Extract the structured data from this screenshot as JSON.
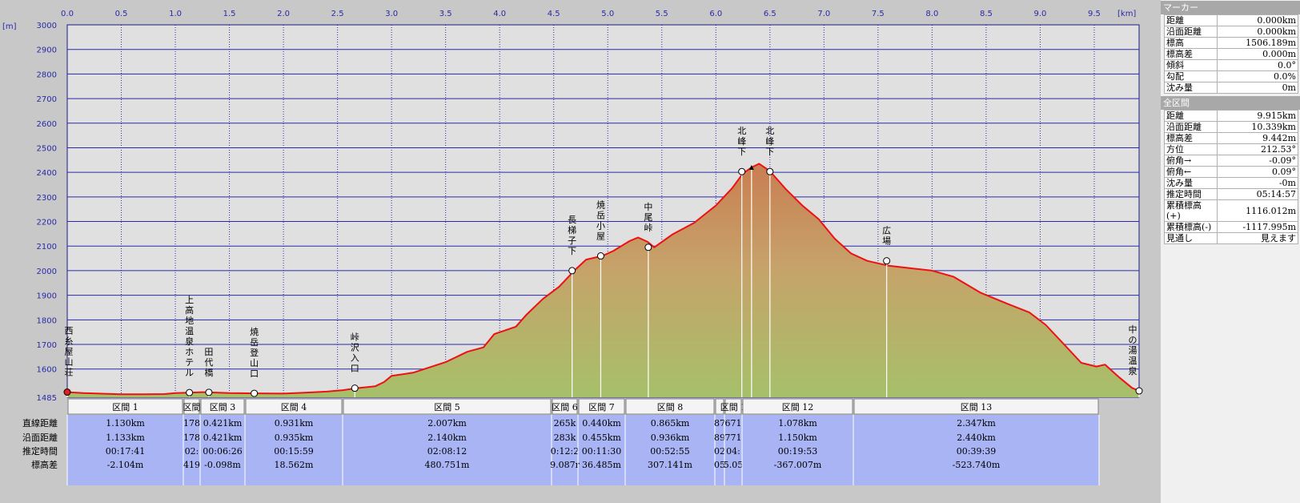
{
  "chart_data": {
    "type": "area",
    "x_unit": "[km]",
    "y_unit": "[m]",
    "xlim": [
      0,
      9.915
    ],
    "ylim": [
      1485,
      3000
    ],
    "x_ticks": [
      "0.0",
      "0.5",
      "1.0",
      "1.5",
      "2.0",
      "2.5",
      "3.0",
      "3.5",
      "4.0",
      "4.5",
      "5.0",
      "5.5",
      "6.0",
      "6.5",
      "7.0",
      "7.5",
      "8.0",
      "8.5",
      "9.0",
      "9.5"
    ],
    "x_tick_values": [
      0,
      0.5,
      1,
      1.5,
      2,
      2.5,
      3,
      3.5,
      4,
      4.5,
      5,
      5.5,
      6,
      6.5,
      7,
      7.5,
      8,
      8.5,
      9,
      9.5
    ],
    "y_ticks": [
      "3000",
      "2900",
      "2800",
      "2700",
      "2600",
      "2500",
      "2400",
      "2300",
      "2200",
      "2100",
      "2000",
      "1900",
      "1800",
      "1700",
      "1600",
      "1485"
    ],
    "y_tick_values": [
      3000,
      2900,
      2800,
      2700,
      2600,
      2500,
      2400,
      2300,
      2200,
      2100,
      2000,
      1900,
      1800,
      1700,
      1600,
      1485
    ],
    "profile": [
      [
        0,
        1506
      ],
      [
        0.15,
        1502
      ],
      [
        0.3,
        1500
      ],
      [
        0.5,
        1497
      ],
      [
        0.7,
        1497
      ],
      [
        0.9,
        1498
      ],
      [
        1.0,
        1502
      ],
      [
        1.13,
        1504
      ],
      [
        1.25,
        1506
      ],
      [
        1.32,
        1505
      ],
      [
        1.5,
        1502
      ],
      [
        1.75,
        1501
      ],
      [
        2.0,
        1500
      ],
      [
        2.2,
        1504
      ],
      [
        2.4,
        1508
      ],
      [
        2.55,
        1514
      ],
      [
        2.68,
        1522
      ],
      [
        2.85,
        1530
      ],
      [
        2.93,
        1547
      ],
      [
        3.0,
        1572
      ],
      [
        3.2,
        1585
      ],
      [
        3.5,
        1628
      ],
      [
        3.7,
        1670
      ],
      [
        3.85,
        1688
      ],
      [
        3.95,
        1742
      ],
      [
        4.15,
        1772
      ],
      [
        4.25,
        1822
      ],
      [
        4.4,
        1885
      ],
      [
        4.55,
        1935
      ],
      [
        4.69,
        2000
      ],
      [
        4.8,
        2045
      ],
      [
        4.95,
        2060
      ],
      [
        5.05,
        2080
      ],
      [
        5.2,
        2120
      ],
      [
        5.28,
        2135
      ],
      [
        5.37,
        2117
      ],
      [
        5.43,
        2095
      ],
      [
        5.6,
        2148
      ],
      [
        5.8,
        2195
      ],
      [
        6.0,
        2265
      ],
      [
        6.15,
        2335
      ],
      [
        6.25,
        2395
      ],
      [
        6.33,
        2420
      ],
      [
        6.4,
        2435
      ],
      [
        6.5,
        2405
      ],
      [
        6.65,
        2330
      ],
      [
        6.8,
        2265
      ],
      [
        6.95,
        2210
      ],
      [
        7.1,
        2130
      ],
      [
        7.25,
        2070
      ],
      [
        7.4,
        2040
      ],
      [
        7.6,
        2020
      ],
      [
        7.8,
        2010
      ],
      [
        8.0,
        2000
      ],
      [
        8.2,
        1975
      ],
      [
        8.45,
        1910
      ],
      [
        8.7,
        1865
      ],
      [
        8.9,
        1830
      ],
      [
        9.05,
        1780
      ],
      [
        9.2,
        1710
      ],
      [
        9.38,
        1625
      ],
      [
        9.52,
        1610
      ],
      [
        9.6,
        1618
      ],
      [
        9.72,
        1570
      ],
      [
        9.85,
        1523
      ],
      [
        9.915,
        1511
      ]
    ],
    "waypoints": [
      {
        "name": "西糸屋山荘",
        "x": 0,
        "y": 1506
      },
      {
        "name": "上高地温泉ホテル",
        "x": 1.13,
        "y": 1504
      },
      {
        "name": "田代橋",
        "x": 1.31,
        "y": 1505
      },
      {
        "name": "焼岳登山口",
        "x": 1.73,
        "y": 1501
      },
      {
        "name": "峠沢入口",
        "x": 2.66,
        "y": 1522
      },
      {
        "name": "長梯子下",
        "x": 4.67,
        "y": 2000
      },
      {
        "name": "焼岳小屋",
        "x": 4.935,
        "y": 2060
      },
      {
        "name": "中尾峠",
        "x": 5.375,
        "y": 2095
      },
      {
        "name": "北峰下",
        "x": 6.24,
        "y": 2403
      },
      {
        "name": "",
        "x": 6.33,
        "y": 2420,
        "summit": true
      },
      {
        "name": "北峰下",
        "x": 6.5,
        "y": 2403
      },
      {
        "name": "広場",
        "x": 7.58,
        "y": 2040
      },
      {
        "name": "中の湯温泉",
        "x": 9.915,
        "y": 1511
      }
    ]
  },
  "segments_table": {
    "row_labels": [
      "直線距離",
      "沿面距離",
      "推定時間",
      "標高差"
    ],
    "segments": [
      {
        "label": "区間 1",
        "values": [
          "1.130km",
          "1.133km",
          "00:17:41",
          "-2.104m"
        ]
      },
      {
        "label": "区間",
        "values": [
          "178",
          "178",
          "02:",
          "419"
        ]
      },
      {
        "label": "区間 3",
        "values": [
          "0.421km",
          "0.421km",
          "00:06:26",
          "-0.098m"
        ]
      },
      {
        "label": "区間 4",
        "values": [
          "0.931km",
          "0.935km",
          "00:15:59",
          "18.562m"
        ]
      },
      {
        "label": "区間 5",
        "values": [
          "2.007km",
          "2.140km",
          "02:08:12",
          "480.751m"
        ]
      },
      {
        "label": "区間 6",
        "values": [
          "265k",
          "283k",
          "0:12:2",
          "9.087r"
        ]
      },
      {
        "label": "区間 7",
        "values": [
          "0.440km",
          "0.455km",
          "00:11:30",
          "36.485m"
        ]
      },
      {
        "label": "区間 8",
        "values": [
          "0.865km",
          "0.936km",
          "00:52:55",
          "307.141m"
        ]
      },
      {
        "label": "",
        "values": [
          "87",
          "89",
          "02",
          "05"
        ]
      },
      {
        "label": "区間 1",
        "values": [
          "671",
          "771",
          "04:",
          "5.05"
        ]
      },
      {
        "label": "区間 12",
        "values": [
          "1.078km",
          "1.150km",
          "00:19:53",
          "-367.007m"
        ]
      },
      {
        "label": "区間 13",
        "values": [
          "2.347km",
          "2.440km",
          "00:39:39",
          "-523.740m"
        ]
      }
    ]
  },
  "marker_panel": {
    "title": "マーカー",
    "rows": [
      {
        "k": "距離",
        "v": "0.000km"
      },
      {
        "k": "沿面距離",
        "v": "0.000km"
      },
      {
        "k": "標高",
        "v": "1506.189m"
      },
      {
        "k": "標高差",
        "v": "0.000m"
      },
      {
        "k": "傾斜",
        "v": "0.0°"
      },
      {
        "k": "勾配",
        "v": "0.0%"
      },
      {
        "k": "沈み量",
        "v": "0m"
      }
    ]
  },
  "total_panel": {
    "title": "全区間",
    "rows": [
      {
        "k": "距離",
        "v": "9.915km"
      },
      {
        "k": "沿面距離",
        "v": "10.339km"
      },
      {
        "k": "標高差",
        "v": "9.442m"
      },
      {
        "k": "方位",
        "v": "212.53°"
      },
      {
        "k": "俯角→",
        "v": "-0.09°"
      },
      {
        "k": "俯角←",
        "v": "0.09°"
      },
      {
        "k": "沈み量",
        "v": "-0m"
      },
      {
        "k": "推定時間",
        "v": "05:14:57"
      },
      {
        "k": "累積標高(+)",
        "v": "1116.012m"
      },
      {
        "k": "累積標高(-)",
        "v": "-1117.995m"
      },
      {
        "k": "見通し",
        "v": "見えます"
      }
    ]
  },
  "colors": {
    "plot_bg": "#e0e0e0",
    "grid": "#2a2aa8",
    "profile_line": "#ee1111",
    "fill_top": "#c97e52",
    "fill_bottom": "#a6c06a",
    "table_bg": "#a8b4f4"
  }
}
